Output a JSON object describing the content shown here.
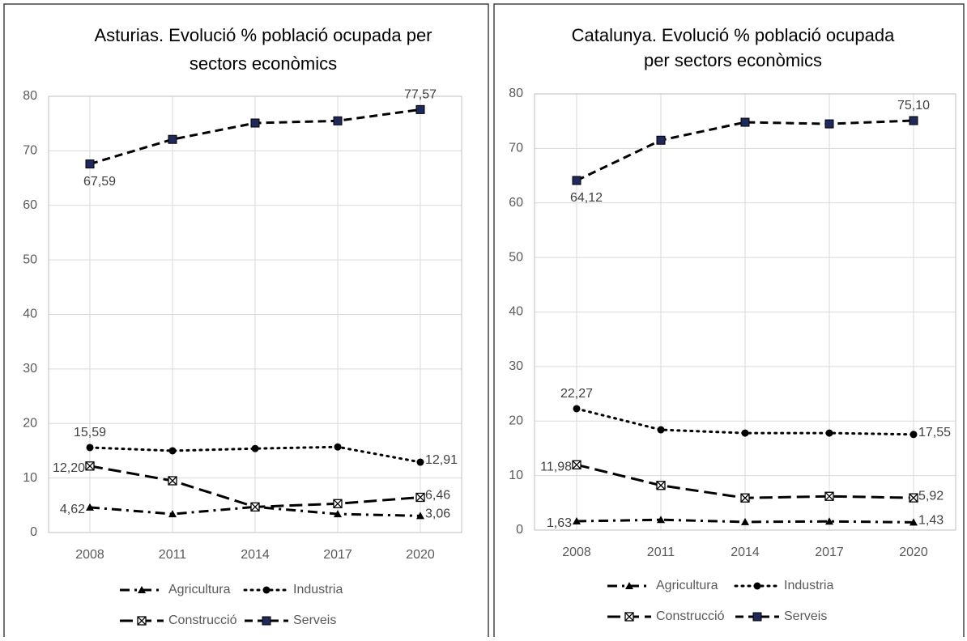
{
  "chart_data": [
    {
      "type": "line",
      "title": [
        "Asturias. Evolució % població ocupada per",
        "sectors econòmics"
      ],
      "categories": [
        "2008",
        "2011",
        "2014",
        "2017",
        "2020"
      ],
      "ylim": [
        0,
        80
      ],
      "yticks": [
        0,
        10,
        20,
        30,
        40,
        50,
        60,
        70,
        80
      ],
      "grid": true,
      "series": [
        {
          "name": "Agricultura",
          "color": "#000000",
          "marker": "triangle",
          "dash": "dashdot",
          "values": [
            4.62,
            3.4,
            4.7,
            3.4,
            3.06
          ],
          "value_labels": [
            "4,62",
            null,
            null,
            null,
            "3,06"
          ]
        },
        {
          "name": "Industria",
          "color": "#000000",
          "marker": "circle",
          "dash": "dot",
          "values": [
            15.59,
            15.0,
            15.4,
            15.7,
            12.91
          ],
          "value_labels": [
            "15,59",
            null,
            null,
            null,
            "12,91"
          ]
        },
        {
          "name": "Construcció",
          "color": "#000000",
          "marker": "xbox",
          "dash": "longdash",
          "values": [
            12.2,
            9.5,
            4.7,
            5.3,
            6.46
          ],
          "value_labels": [
            "12,20",
            null,
            null,
            null,
            "6,46"
          ]
        },
        {
          "name": "Serveis",
          "color": "#000000",
          "marker": "square",
          "dash": "dash",
          "values": [
            67.59,
            72.1,
            75.1,
            75.5,
            77.57
          ],
          "value_labels": [
            "67,59",
            null,
            null,
            null,
            "77,57"
          ]
        }
      ]
    },
    {
      "type": "line",
      "title": [
        "Catalunya. Evolució % població ocupada",
        "per sectors econòmics"
      ],
      "categories": [
        "2008",
        "2011",
        "2014",
        "2017",
        "2020"
      ],
      "ylim": [
        0,
        80
      ],
      "yticks": [
        0,
        10,
        20,
        30,
        40,
        50,
        60,
        70,
        80
      ],
      "grid": true,
      "series": [
        {
          "name": "Agricultura",
          "color": "#000000",
          "marker": "triangle",
          "dash": "dashdot",
          "values": [
            1.63,
            1.9,
            1.5,
            1.6,
            1.43
          ],
          "value_labels": [
            "1,63",
            null,
            null,
            null,
            "1,43"
          ]
        },
        {
          "name": "Industria",
          "color": "#000000",
          "marker": "circle",
          "dash": "dot",
          "values": [
            22.27,
            18.4,
            17.8,
            17.8,
            17.55
          ],
          "value_labels": [
            "22,27",
            null,
            null,
            null,
            "17,55"
          ]
        },
        {
          "name": "Construcció",
          "color": "#000000",
          "marker": "xbox",
          "dash": "longdash",
          "values": [
            11.98,
            8.2,
            5.9,
            6.2,
            5.92
          ],
          "value_labels": [
            "11,98",
            null,
            null,
            null,
            "5,92"
          ]
        },
        {
          "name": "Serveis",
          "color": "#000000",
          "marker": "square",
          "dash": "dash",
          "values": [
            64.12,
            71.5,
            74.8,
            74.5,
            75.1
          ],
          "value_labels": [
            "64,12",
            null,
            null,
            null,
            "75,10"
          ]
        }
      ]
    }
  ]
}
